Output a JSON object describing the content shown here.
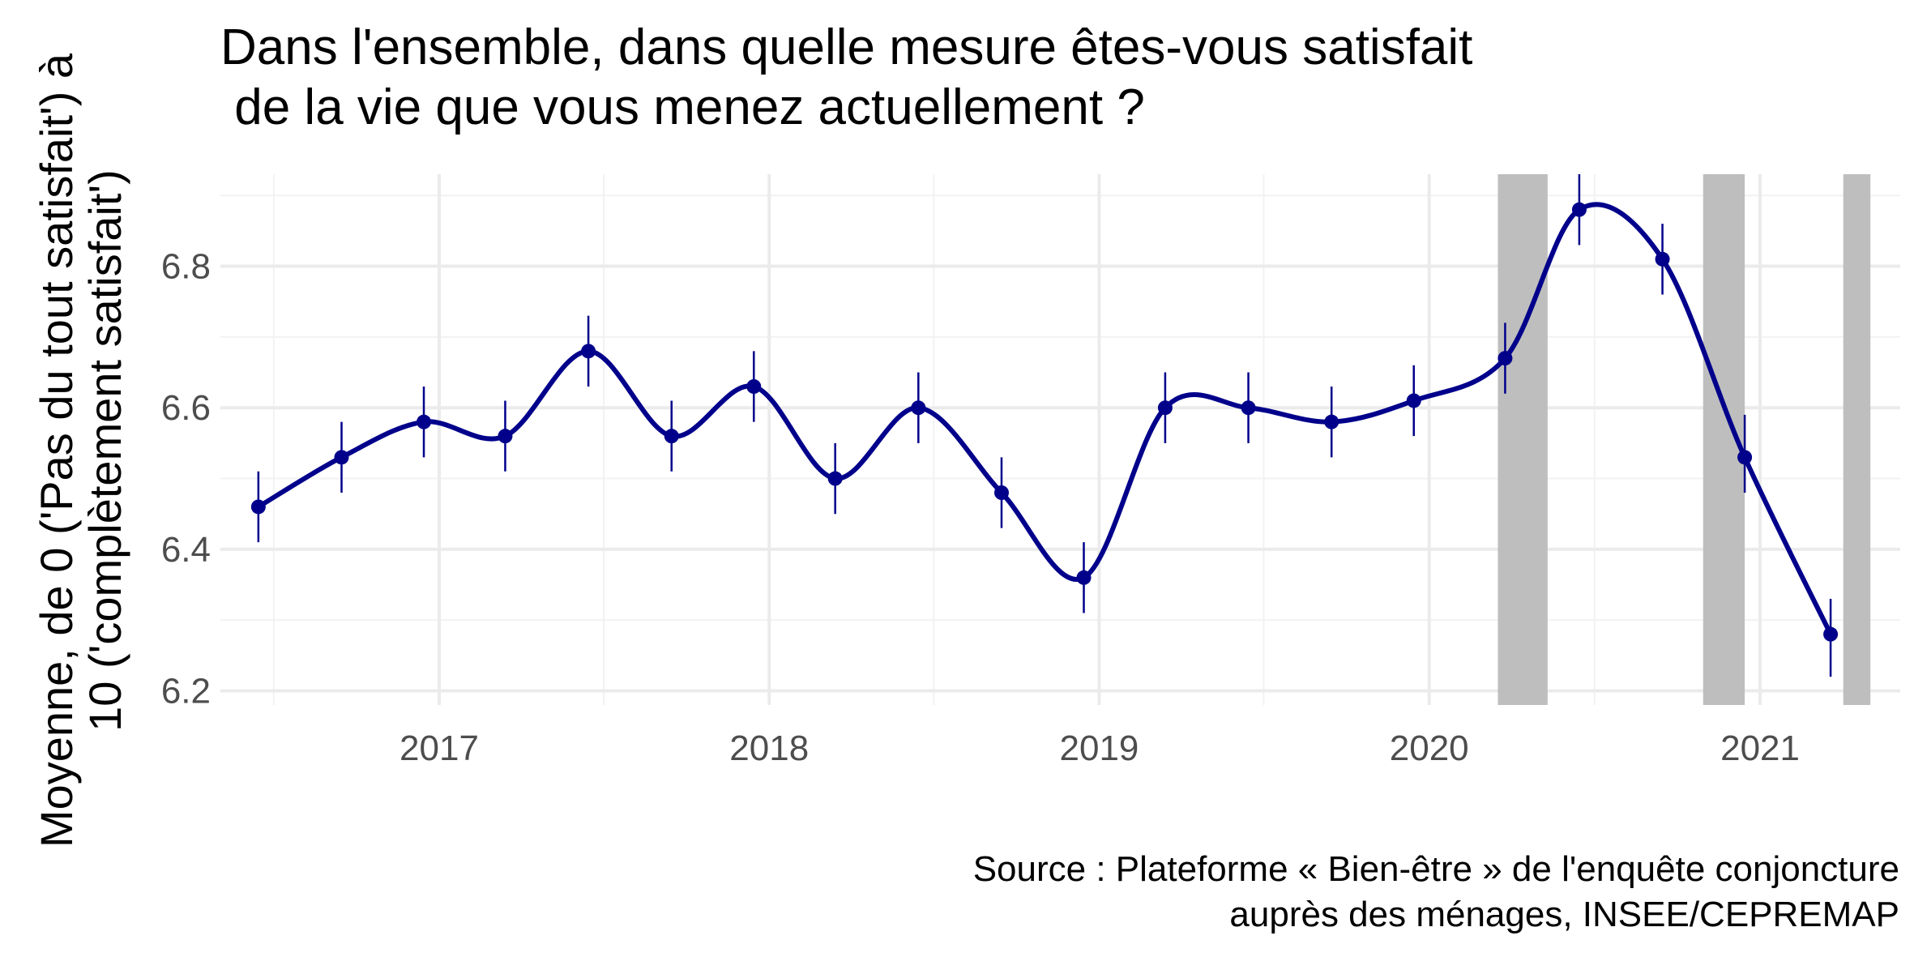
{
  "chart_data": {
    "type": "line",
    "title": "Dans l'ensemble, dans quelle mesure êtes-vous satisfait\n de la vie que vous menez actuellement ?",
    "ylabel": "Moyenne, de 0 ('Pas du tout satisfait') à\n10 ('complètement satisfait')",
    "xlabel": "",
    "caption": "Source : Plateforme « Bien-être » de l'enquête conjoncture\nauprès des ménages, INSEE/CEPREMAP",
    "xlim": [
      "2016-05-04",
      "2021-06-05"
    ],
    "ylim": [
      6.18,
      6.93
    ],
    "x_ticks": [
      "2017",
      "2018",
      "2019",
      "2020",
      "2021"
    ],
    "y_ticks": [
      6.2,
      6.4,
      6.6,
      6.8
    ],
    "grid": true,
    "line_color": "#00008B",
    "shade_color": "#BEBEBE",
    "shaded_periods": [
      {
        "start": "2020-03-17",
        "end": "2020-05-11"
      },
      {
        "start": "2020-10-30",
        "end": "2020-12-15"
      },
      {
        "start": "2021-04-03",
        "end": "2021-05-03"
      }
    ],
    "series": [
      {
        "points": [
          {
            "x": "2016-06-15",
            "y": 6.46,
            "low": 6.41,
            "high": 6.51
          },
          {
            "x": "2016-09-15",
            "y": 6.53,
            "low": 6.48,
            "high": 6.58
          },
          {
            "x": "2016-12-15",
            "y": 6.58,
            "low": 6.53,
            "high": 6.63
          },
          {
            "x": "2017-03-15",
            "y": 6.56,
            "low": 6.51,
            "high": 6.61
          },
          {
            "x": "2017-06-15",
            "y": 6.68,
            "low": 6.63,
            "high": 6.73
          },
          {
            "x": "2017-09-15",
            "y": 6.56,
            "low": 6.51,
            "high": 6.61
          },
          {
            "x": "2017-12-15",
            "y": 6.63,
            "low": 6.58,
            "high": 6.68
          },
          {
            "x": "2018-03-15",
            "y": 6.5,
            "low": 6.45,
            "high": 6.55
          },
          {
            "x": "2018-06-15",
            "y": 6.6,
            "low": 6.55,
            "high": 6.65
          },
          {
            "x": "2018-09-15",
            "y": 6.48,
            "low": 6.43,
            "high": 6.53
          },
          {
            "x": "2018-12-15",
            "y": 6.36,
            "low": 6.31,
            "high": 6.41
          },
          {
            "x": "2019-03-15",
            "y": 6.6,
            "low": 6.55,
            "high": 6.65
          },
          {
            "x": "2019-06-15",
            "y": 6.6,
            "low": 6.55,
            "high": 6.65
          },
          {
            "x": "2019-09-15",
            "y": 6.58,
            "low": 6.53,
            "high": 6.63
          },
          {
            "x": "2019-12-15",
            "y": 6.61,
            "low": 6.56,
            "high": 6.66
          },
          {
            "x": "2020-03-25",
            "y": 6.67,
            "low": 6.62,
            "high": 6.72
          },
          {
            "x": "2020-06-15",
            "y": 6.88,
            "low": 6.83,
            "high": 6.93
          },
          {
            "x": "2020-09-15",
            "y": 6.81,
            "low": 6.76,
            "high": 6.86
          },
          {
            "x": "2020-12-15",
            "y": 6.53,
            "low": 6.48,
            "high": 6.59
          },
          {
            "x": "2021-03-20",
            "y": 6.28,
            "low": 6.22,
            "high": 6.33
          }
        ]
      }
    ]
  }
}
